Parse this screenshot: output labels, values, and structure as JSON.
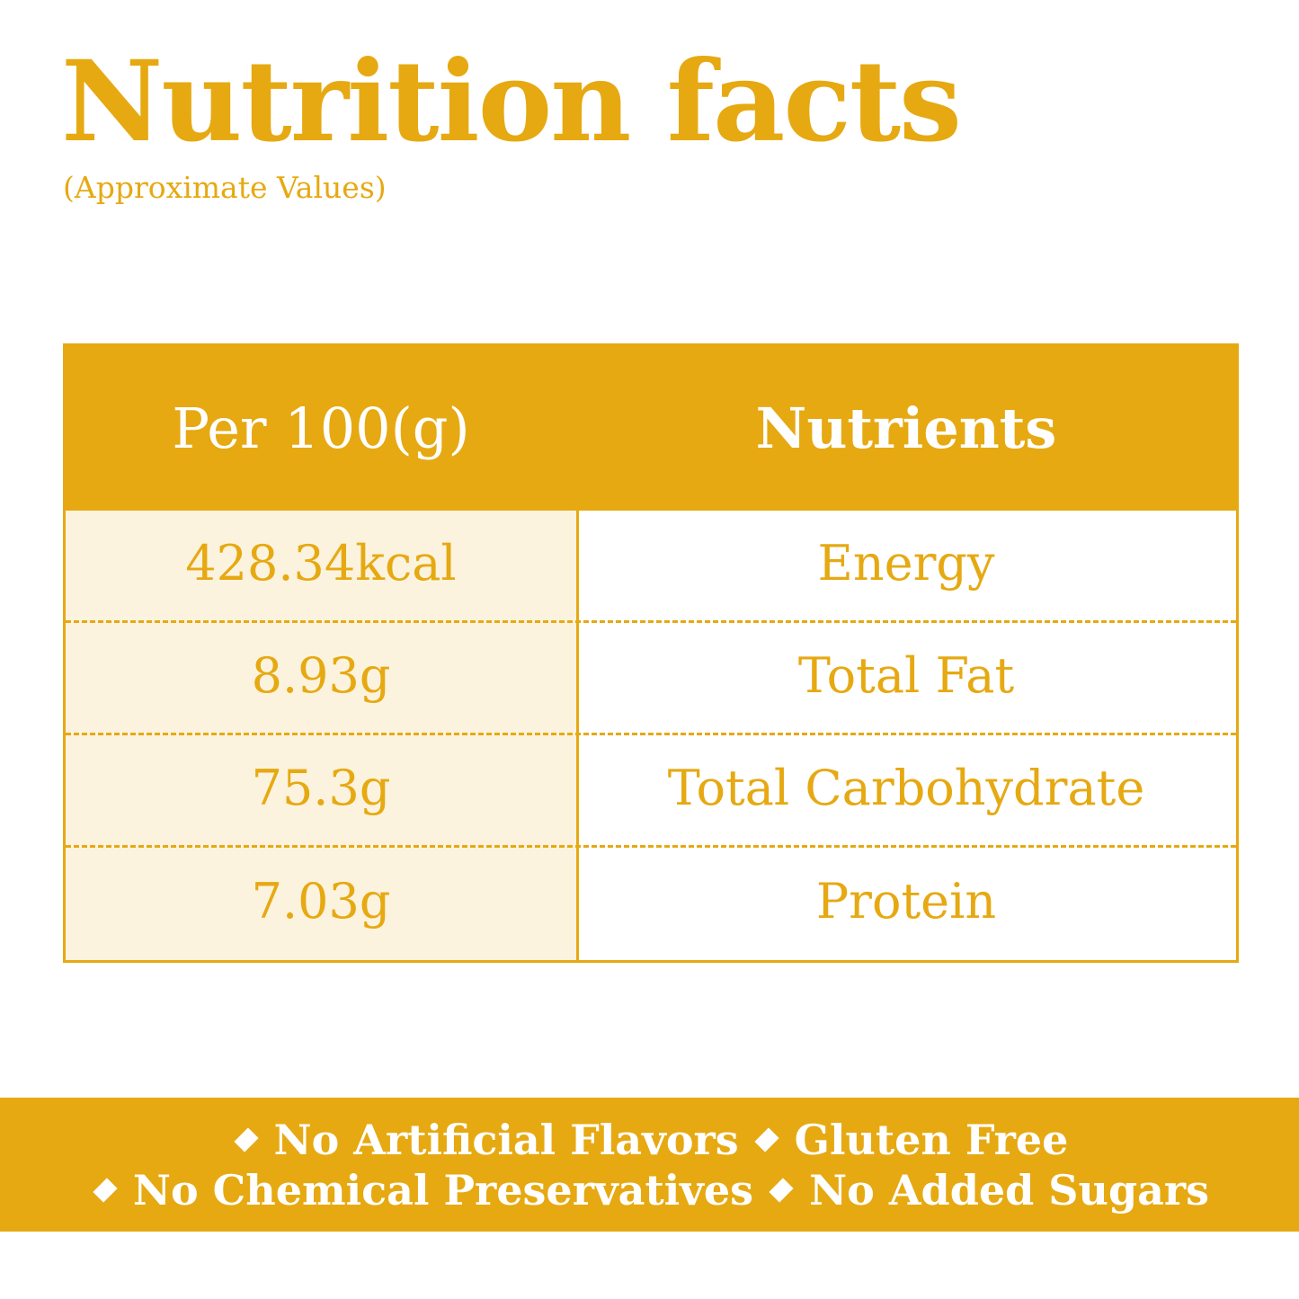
{
  "header": {
    "title": "Nutrition facts",
    "subtitle": "(Approximate Values)"
  },
  "table": {
    "columns": [
      "Per 100(g)",
      "Nutrients"
    ],
    "rows": [
      {
        "value": "428.34kcal",
        "nutrient": "Energy"
      },
      {
        "value": "8.93g",
        "nutrient": "Total Fat"
      },
      {
        "value": "75.3g",
        "nutrient": "Total Carbohydrate"
      },
      {
        "value": "7.03g",
        "nutrient": "Protein"
      }
    ]
  },
  "banner": {
    "line1": [
      "No Artificial Flavors",
      "Gluten Free"
    ],
    "line2": [
      "No Chemical Preservatives",
      "No Added Sugars"
    ],
    "bullet_icon": "diamond-icon"
  },
  "colors": {
    "accent": "#e6a912",
    "light_fill": "#fcf3de",
    "background": "#ffffff"
  }
}
